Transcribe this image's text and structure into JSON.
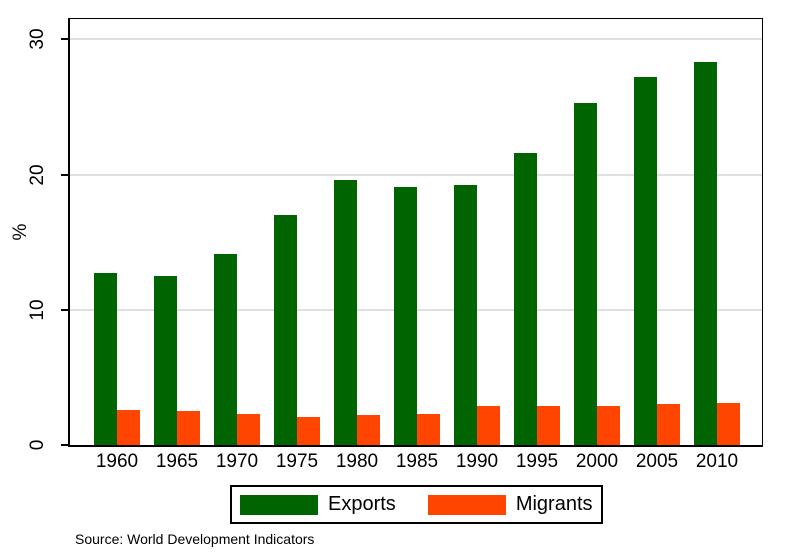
{
  "chart_data": {
    "type": "bar",
    "title": "",
    "ylabel": "%",
    "xlabel": "",
    "categories": [
      "1960",
      "1965",
      "1970",
      "1975",
      "1980",
      "1985",
      "1990",
      "1995",
      "2000",
      "2005",
      "2010"
    ],
    "series": [
      {
        "name": "Exports",
        "color": "#006400",
        "values": [
          12.7,
          12.5,
          14.1,
          17.0,
          19.6,
          19.1,
          19.2,
          21.6,
          25.3,
          27.2,
          28.3
        ]
      },
      {
        "name": "Migrants",
        "color": "#FF4500",
        "values": [
          2.6,
          2.5,
          2.3,
          2.1,
          2.2,
          2.3,
          2.9,
          2.9,
          2.9,
          3.0,
          3.1
        ]
      }
    ],
    "yticks": [
      0,
      10,
      20,
      30
    ],
    "ylim": [
      0,
      31.5
    ],
    "grid": "horizontal",
    "gridline_color": "#e0e0e0",
    "axis_color": "#000000",
    "legend_position": "bottom-center"
  },
  "source_note": "Source: World Development Indicators"
}
